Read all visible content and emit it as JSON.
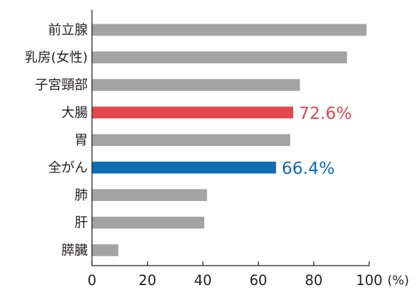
{
  "chart_data": {
    "type": "bar",
    "orientation": "horizontal",
    "categories": [
      "前立腺",
      "乳房(女性)",
      "子宮頸部",
      "大腸",
      "胃",
      "全がん",
      "肺",
      "肝",
      "膵臓"
    ],
    "values": [
      99,
      92,
      75,
      72.6,
      71.5,
      66.4,
      41.5,
      40.5,
      9.5
    ],
    "highlight": [
      {
        "category": "大腸",
        "color": "#e5474f",
        "label": "72.6%"
      },
      {
        "category": "全がん",
        "color": "#0f6cb5",
        "label": "66.4%"
      }
    ],
    "default_color": "#a3a3a3",
    "xlim": [
      0,
      100
    ],
    "xticks": [
      "0",
      "20",
      "40",
      "60",
      "80",
      "100"
    ],
    "x_unit": "(%)",
    "grid": false
  }
}
